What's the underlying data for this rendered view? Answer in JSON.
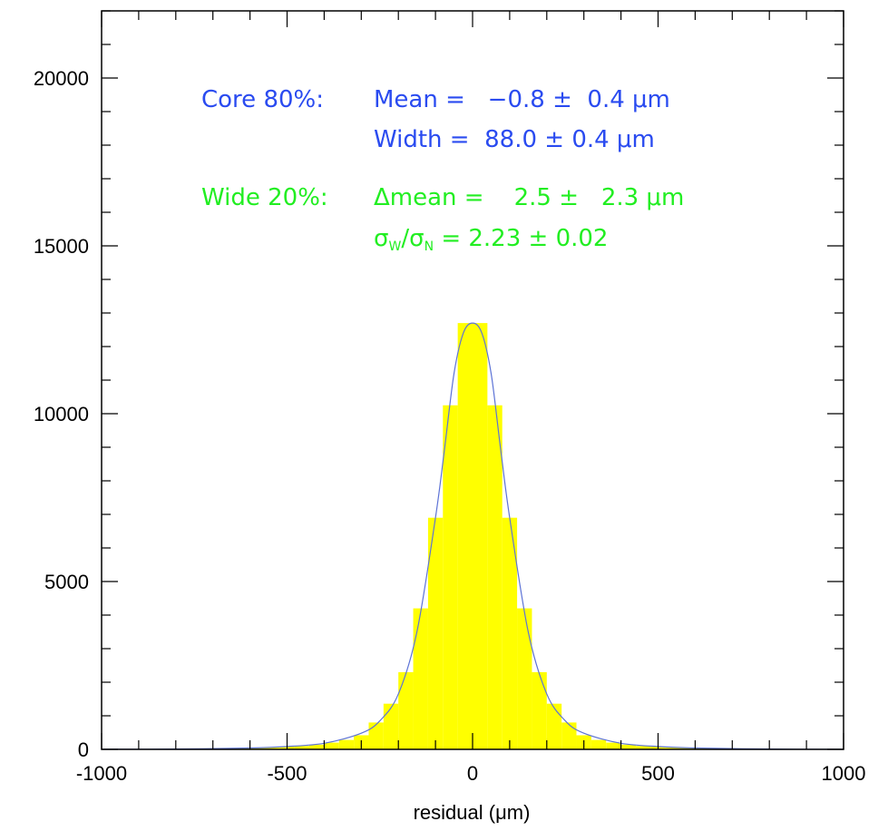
{
  "chart_data": {
    "type": "bar",
    "title": "",
    "xlabel": "residual (μm)",
    "ylabel": "",
    "xlim": [
      -1000,
      1000
    ],
    "ylim": [
      0,
      22000
    ],
    "x_ticks": [
      -1000,
      -500,
      0,
      500,
      1000
    ],
    "y_ticks": [
      0,
      5000,
      10000,
      15000,
      20000
    ],
    "x_tick_labels": [
      "-1000",
      "-500",
      "0",
      "500",
      "1000"
    ],
    "y_tick_labels": [
      "0",
      "5000",
      "10000",
      "15000",
      "20000"
    ],
    "bin_width": 40,
    "bin_left_edges": [
      -680,
      -640,
      -600,
      -560,
      -520,
      -480,
      -440,
      -400,
      -360,
      -320,
      -280,
      -240,
      -200,
      -160,
      -120,
      -80,
      -40,
      0,
      40,
      80,
      120,
      160,
      200,
      240,
      280,
      320,
      360,
      400,
      440,
      480,
      520,
      560,
      600,
      640,
      680
    ],
    "values": [
      30,
      40,
      50,
      60,
      80,
      100,
      140,
      200,
      280,
      420,
      800,
      1360,
      2300,
      4200,
      6900,
      10250,
      12700,
      12700,
      10250,
      6900,
      4200,
      2300,
      1360,
      800,
      420,
      280,
      200,
      140,
      100,
      80,
      60,
      50,
      40,
      30,
      20
    ],
    "fit_curve": {
      "x": [
        -1000,
        -800,
        -600,
        -500,
        -400,
        -300,
        -250,
        -200,
        -150,
        -100,
        -75,
        -50,
        -25,
        0,
        25,
        50,
        75,
        100,
        150,
        200,
        250,
        300,
        400,
        500,
        600,
        800,
        1000
      ],
      "y": [
        2,
        10,
        40,
        85,
        180,
        480,
        850,
        1650,
        3500,
        6900,
        9000,
        11200,
        12400,
        12700,
        12400,
        11200,
        9000,
        6900,
        3500,
        1650,
        850,
        480,
        180,
        85,
        40,
        10,
        2
      ]
    },
    "bar_color": "#ffff00",
    "fit_color": "#5d73d6",
    "grid": false,
    "legend": "none"
  },
  "annotations": {
    "core_label": "Core 80%:",
    "mean_line": "Mean =   −0.8 ±  0.4 μm",
    "width_line": "Width =  88.0 ± 0.4 μm",
    "wide_label": "Wide 20%:",
    "dmean_line": "Δmean =    2.5 ±   2.3 μm",
    "sigma_sym1": "σ",
    "sigma_sub1": "W",
    "sigma_slash": "/",
    "sigma_sym2": "σ",
    "sigma_sub2": "N",
    "sigma_value": " = 2.23 ± 0.02",
    "core_color": "#2a4bf0",
    "wide_color": "#22ee22"
  }
}
